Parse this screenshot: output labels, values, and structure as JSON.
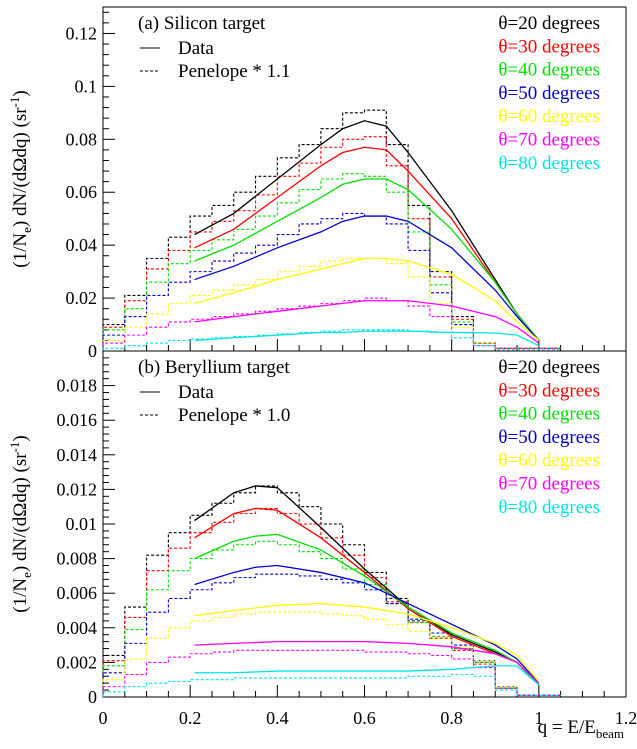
{
  "chart_data": [
    {
      "type": "line",
      "title": "(a) Silicon target",
      "xlabel": "",
      "ylabel_parts": {
        "a": "(1/N",
        "sub": "e",
        "b": ") dN/(dΩdq) (sr",
        "sup": "-1",
        "c": ")"
      },
      "xlim": [
        0,
        1.2
      ],
      "ylim": [
        0,
        0.13
      ],
      "yticks": [
        0,
        0.02,
        0.04,
        0.06,
        0.08,
        0.1,
        0.12
      ],
      "ytick_labels": [
        "0",
        "0.02",
        "0.04",
        "0.06",
        "0.08",
        "0.1",
        "0.12"
      ],
      "style_legend": [
        {
          "label": "Data",
          "dash": "solid"
        },
        {
          "label": "Penelope * 1.1",
          "dash": "dashed"
        }
      ],
      "series": [
        {
          "name": "θ=20 degrees",
          "color": "#000000",
          "data_x": [
            0.21,
            0.3,
            0.4,
            0.5,
            0.55,
            0.6,
            0.65,
            0.7,
            0.8,
            0.9,
            0.95,
            1.0
          ],
          "data_y": [
            0.044,
            0.052,
            0.065,
            0.078,
            0.084,
            0.087,
            0.085,
            0.075,
            0.053,
            0.027,
            0.014,
            0.004
          ],
          "mc_y": [
            0.01,
            0.021,
            0.035,
            0.043,
            0.051,
            0.055,
            0.06,
            0.066,
            0.073,
            0.078,
            0.084,
            0.09,
            0.091,
            0.078,
            0.055,
            0.03,
            0.013,
            0.003,
            0.001,
            0.001,
            0.001
          ]
        },
        {
          "name": "θ=30 degrees",
          "color": "#ff0000",
          "data_x": [
            0.21,
            0.3,
            0.4,
            0.5,
            0.55,
            0.6,
            0.65,
            0.7,
            0.8,
            0.9,
            0.95,
            1.0
          ],
          "data_y": [
            0.039,
            0.046,
            0.058,
            0.07,
            0.075,
            0.077,
            0.076,
            0.068,
            0.05,
            0.026,
            0.014,
            0.004
          ],
          "mc_y": [
            0.009,
            0.019,
            0.031,
            0.038,
            0.045,
            0.049,
            0.053,
            0.059,
            0.066,
            0.071,
            0.077,
            0.08,
            0.081,
            0.07,
            0.05,
            0.028,
            0.012,
            0.003,
            0.001,
            0.001,
            0.001
          ]
        },
        {
          "name": "θ=40 degrees",
          "color": "#00e000",
          "data_x": [
            0.21,
            0.3,
            0.4,
            0.5,
            0.55,
            0.6,
            0.65,
            0.7,
            0.8,
            0.9,
            0.95,
            1.0
          ],
          "data_y": [
            0.034,
            0.04,
            0.049,
            0.058,
            0.063,
            0.065,
            0.065,
            0.061,
            0.046,
            0.026,
            0.014,
            0.004
          ],
          "mc_y": [
            0.008,
            0.016,
            0.026,
            0.033,
            0.038,
            0.042,
            0.046,
            0.051,
            0.056,
            0.061,
            0.065,
            0.067,
            0.066,
            0.06,
            0.045,
            0.025,
            0.011,
            0.003,
            0.001,
            0.001,
            0.001
          ]
        },
        {
          "name": "θ=50 degrees",
          "color": "#0000cc",
          "data_x": [
            0.21,
            0.3,
            0.4,
            0.5,
            0.55,
            0.6,
            0.65,
            0.7,
            0.8,
            0.9,
            0.95,
            1.0
          ],
          "data_y": [
            0.027,
            0.032,
            0.039,
            0.045,
            0.049,
            0.051,
            0.051,
            0.049,
            0.039,
            0.023,
            0.013,
            0.004
          ],
          "mc_y": [
            0.006,
            0.013,
            0.021,
            0.026,
            0.03,
            0.034,
            0.037,
            0.04,
            0.044,
            0.048,
            0.05,
            0.052,
            0.051,
            0.048,
            0.038,
            0.022,
            0.01,
            0.003,
            0.001,
            0.001,
            0.001
          ]
        },
        {
          "name": "θ=60 degrees",
          "color": "#ffff00",
          "data_x": [
            0.21,
            0.3,
            0.4,
            0.5,
            0.55,
            0.6,
            0.65,
            0.7,
            0.8,
            0.9,
            0.95,
            1.0
          ],
          "data_y": [
            0.018,
            0.022,
            0.027,
            0.031,
            0.033,
            0.035,
            0.035,
            0.034,
            0.029,
            0.019,
            0.011,
            0.004
          ],
          "mc_y": [
            0.004,
            0.009,
            0.014,
            0.018,
            0.021,
            0.023,
            0.025,
            0.027,
            0.03,
            0.032,
            0.034,
            0.035,
            0.035,
            0.033,
            0.028,
            0.018,
            0.009,
            0.003,
            0.001,
            0.001,
            0.001
          ]
        },
        {
          "name": "θ=70 degrees",
          "color": "#ff00ff",
          "data_x": [
            0.21,
            0.3,
            0.4,
            0.5,
            0.55,
            0.6,
            0.65,
            0.7,
            0.8,
            0.9,
            0.95,
            1.0
          ],
          "data_y": [
            0.011,
            0.013,
            0.015,
            0.017,
            0.018,
            0.019,
            0.019,
            0.019,
            0.017,
            0.013,
            0.009,
            0.003
          ],
          "mc_y": [
            0.003,
            0.006,
            0.009,
            0.011,
            0.012,
            0.013,
            0.014,
            0.015,
            0.016,
            0.017,
            0.018,
            0.019,
            0.02,
            0.019,
            0.017,
            0.013,
            0.007,
            0.002,
            0.001,
            0.001,
            0.001
          ]
        },
        {
          "name": "θ=80 degrees",
          "color": "#00e5e5",
          "data_x": [
            0.21,
            0.3,
            0.4,
            0.5,
            0.55,
            0.6,
            0.65,
            0.7,
            0.8,
            0.9,
            0.95,
            1.0
          ],
          "data_y": [
            0.004,
            0.005,
            0.006,
            0.007,
            0.007,
            0.0075,
            0.0075,
            0.0075,
            0.007,
            0.0068,
            0.006,
            0.002
          ],
          "mc_y": [
            0.001,
            0.002,
            0.003,
            0.004,
            0.0045,
            0.005,
            0.0055,
            0.006,
            0.0065,
            0.007,
            0.0075,
            0.008,
            0.008,
            0.008,
            0.0075,
            0.007,
            0.005,
            0.002,
            0.0005,
            0.0005,
            0.0005
          ]
        }
      ]
    },
    {
      "type": "line",
      "title": "(b) Beryllium target",
      "xlabel_parts": {
        "a": "q = E/E",
        "sub": "beam"
      },
      "ylabel_parts": {
        "a": "(1/N",
        "sub": "e",
        "b": ") dN/(dΩdq) (sr",
        "sup": "-1",
        "c": ")"
      },
      "xlim": [
        0,
        1.2
      ],
      "ylim": [
        0,
        0.02
      ],
      "xticks": [
        0,
        0.2,
        0.4,
        0.6,
        0.8,
        1,
        1.2
      ],
      "xtick_labels": [
        "0",
        "0.2",
        "0.4",
        "0.6",
        "0.8",
        "1",
        "1.2"
      ],
      "yticks": [
        0,
        0.002,
        0.004,
        0.006,
        0.008,
        0.01,
        0.012,
        0.014,
        0.016,
        0.018
      ],
      "ytick_labels": [
        "0",
        "0.002",
        "0.004",
        "0.006",
        "0.008",
        "0.01",
        "0.012",
        "0.014",
        "0.016",
        "0.018"
      ],
      "style_legend": [
        {
          "label": "Data",
          "dash": "solid"
        },
        {
          "label": "Penelope * 1.0",
          "dash": "dashed"
        }
      ],
      "series": [
        {
          "name": "θ=20 degrees",
          "color": "#000000",
          "data_x": [
            0.21,
            0.3,
            0.35,
            0.4,
            0.5,
            0.6,
            0.7,
            0.8,
            0.9,
            0.95,
            1.0
          ],
          "data_y": [
            0.0102,
            0.0118,
            0.0122,
            0.0121,
            0.0098,
            0.0074,
            0.0052,
            0.0036,
            0.0026,
            0.002,
            0.0007
          ],
          "mc_y": [
            0.0024,
            0.0052,
            0.0082,
            0.0095,
            0.0105,
            0.0112,
            0.0118,
            0.0122,
            0.0118,
            0.011,
            0.01,
            0.0088,
            0.0072,
            0.0057,
            0.0044,
            0.0034,
            0.0028,
            0.002,
            0.0005,
            0.0001,
            0.0001
          ]
        },
        {
          "name": "θ=30 degrees",
          "color": "#ff0000",
          "data_x": [
            0.21,
            0.3,
            0.35,
            0.4,
            0.5,
            0.6,
            0.7,
            0.8,
            0.9,
            0.95,
            1.0
          ],
          "data_y": [
            0.0092,
            0.0106,
            0.0109,
            0.0108,
            0.0092,
            0.0072,
            0.0051,
            0.0035,
            0.0025,
            0.002,
            0.0007
          ],
          "mc_y": [
            0.0021,
            0.0046,
            0.0073,
            0.0086,
            0.0095,
            0.0101,
            0.0106,
            0.0109,
            0.0106,
            0.01,
            0.0092,
            0.0082,
            0.0069,
            0.0055,
            0.0043,
            0.0034,
            0.0027,
            0.0019,
            0.0005,
            0.0001,
            0.0001
          ]
        },
        {
          "name": "θ=40 degrees",
          "color": "#00e000",
          "data_x": [
            0.21,
            0.3,
            0.35,
            0.4,
            0.5,
            0.6,
            0.7,
            0.8,
            0.9,
            0.95,
            1.0
          ],
          "data_y": [
            0.008,
            0.009,
            0.0093,
            0.0094,
            0.0085,
            0.007,
            0.0052,
            0.0037,
            0.0027,
            0.002,
            0.0007
          ],
          "mc_y": [
            0.0018,
            0.0039,
            0.0062,
            0.0073,
            0.008,
            0.0085,
            0.0088,
            0.009,
            0.0088,
            0.0084,
            0.008,
            0.0074,
            0.0065,
            0.0054,
            0.0043,
            0.0035,
            0.0028,
            0.002,
            0.0005,
            0.0001,
            0.0001
          ]
        },
        {
          "name": "θ=50 degrees",
          "color": "#0000cc",
          "data_x": [
            0.21,
            0.3,
            0.35,
            0.4,
            0.5,
            0.6,
            0.7,
            0.8,
            0.9,
            0.95,
            1.0
          ],
          "data_y": [
            0.0065,
            0.0072,
            0.0075,
            0.0076,
            0.0072,
            0.0066,
            0.0054,
            0.0042,
            0.003,
            0.0022,
            0.0008
          ],
          "mc_y": [
            0.0014,
            0.0031,
            0.0049,
            0.0057,
            0.0062,
            0.0066,
            0.0069,
            0.0071,
            0.0071,
            0.007,
            0.0068,
            0.0066,
            0.0062,
            0.0054,
            0.0045,
            0.0037,
            0.003,
            0.0021,
            0.0006,
            0.0001,
            0.0001
          ]
        },
        {
          "name": "θ=60 degrees",
          "color": "#ffff00",
          "data_x": [
            0.21,
            0.3,
            0.4,
            0.5,
            0.6,
            0.7,
            0.8,
            0.9,
            0.95,
            1.0
          ],
          "data_y": [
            0.0047,
            0.005,
            0.0053,
            0.0054,
            0.0052,
            0.0048,
            0.004,
            0.0031,
            0.0024,
            0.0009
          ],
          "mc_y": [
            0.001,
            0.0022,
            0.0034,
            0.004,
            0.0044,
            0.0046,
            0.0048,
            0.0049,
            0.0049,
            0.0049,
            0.0048,
            0.0047,
            0.0045,
            0.0042,
            0.0038,
            0.0034,
            0.0029,
            0.0021,
            0.0006,
            0.0001,
            0.0001
          ]
        },
        {
          "name": "θ=70 degrees",
          "color": "#ff00ff",
          "data_x": [
            0.21,
            0.3,
            0.4,
            0.5,
            0.6,
            0.7,
            0.8,
            0.9,
            0.95,
            1.0
          ],
          "data_y": [
            0.003,
            0.0031,
            0.0032,
            0.0032,
            0.0032,
            0.0031,
            0.0029,
            0.0025,
            0.002,
            0.0008
          ],
          "mc_y": [
            0.0006,
            0.0013,
            0.002,
            0.0023,
            0.0025,
            0.0026,
            0.0027,
            0.0027,
            0.0027,
            0.0027,
            0.0027,
            0.0027,
            0.0026,
            0.0026,
            0.0025,
            0.0024,
            0.0022,
            0.0017,
            0.0005,
            0.0001,
            0.0001
          ]
        },
        {
          "name": "θ=80 degrees",
          "color": "#00e5e5",
          "data_x": [
            0.21,
            0.3,
            0.4,
            0.5,
            0.6,
            0.7,
            0.8,
            0.9,
            0.95,
            1.0
          ],
          "data_y": [
            0.0014,
            0.0014,
            0.0015,
            0.0015,
            0.0015,
            0.0015,
            0.0016,
            0.0018,
            0.0018,
            0.0007
          ],
          "mc_y": [
            0.0003,
            0.0006,
            0.0008,
            0.0009,
            0.001,
            0.001,
            0.0011,
            0.0011,
            0.0011,
            0.0011,
            0.0011,
            0.0011,
            0.0011,
            0.0011,
            0.0012,
            0.0012,
            0.0013,
            0.0012,
            0.0004,
            0.0001,
            0.0001
          ]
        }
      ]
    }
  ]
}
